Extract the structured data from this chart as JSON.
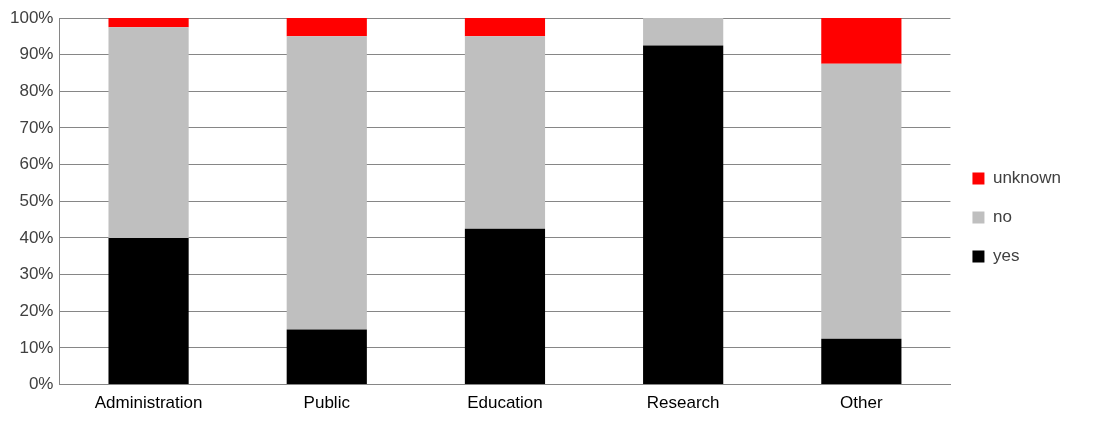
{
  "chart_data": {
    "type": "bar",
    "stacked": true,
    "categories": [
      "Administration",
      "Public",
      "Education",
      "Research",
      "Other"
    ],
    "series": [
      {
        "name": "yes",
        "color": "#000000",
        "values": [
          40,
          15,
          42.5,
          92.5,
          12.5
        ]
      },
      {
        "name": "no",
        "color": "#bfbfbf",
        "values": [
          57.5,
          80,
          52.5,
          7.5,
          75
        ]
      },
      {
        "name": "unknown",
        "color": "#ff0000",
        "values": [
          2.5,
          5,
          5,
          0,
          12.5
        ]
      }
    ],
    "ylim": [
      0,
      100
    ],
    "yticks": [
      {
        "value": 0,
        "label": "0%"
      },
      {
        "value": 10,
        "label": "10%"
      },
      {
        "value": 20,
        "label": "20%"
      },
      {
        "value": 30,
        "label": "30%"
      },
      {
        "value": 40,
        "label": "40%"
      },
      {
        "value": 50,
        "label": "50%"
      },
      {
        "value": 60,
        "label": "60%"
      },
      {
        "value": 70,
        "label": "70%"
      },
      {
        "value": 80,
        "label": "80%"
      },
      {
        "value": 90,
        "label": "90%"
      },
      {
        "value": 100,
        "label": "100%"
      }
    ],
    "grid": "y",
    "legend": "right"
  }
}
